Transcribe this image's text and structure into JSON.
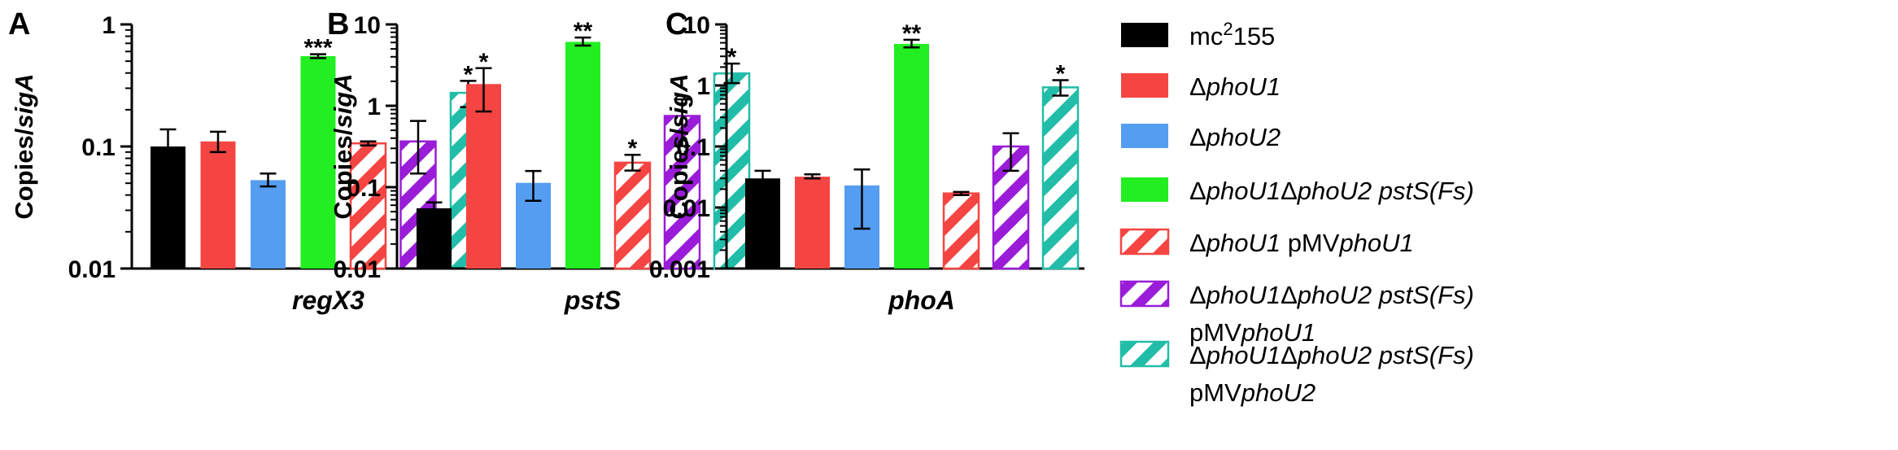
{
  "colors": {
    "mc2155": "#000000",
    "dphoU1": "#f44542",
    "dphoU2": "#559df0",
    "triple": "#22ee22",
    "comp_dphoU1": "#f44542",
    "comp_triple_U1": "#9a1cd8",
    "comp_triple_U2": "#22bda8"
  },
  "legend": [
    {
      "key": "mc2155",
      "style": "solid",
      "lines": [
        [
          {
            "t": "mc",
            "i": false
          },
          {
            "t": "2",
            "i": false,
            "sup": true
          },
          {
            "t": "155",
            "i": false
          }
        ]
      ]
    },
    {
      "key": "dphoU1",
      "style": "solid",
      "lines": [
        [
          {
            "t": "Δ",
            "i": false
          },
          {
            "t": "phoU1",
            "i": true
          }
        ]
      ]
    },
    {
      "key": "dphoU2",
      "style": "solid",
      "lines": [
        [
          {
            "t": "Δ",
            "i": false
          },
          {
            "t": "phoU2",
            "i": true
          }
        ]
      ]
    },
    {
      "key": "triple",
      "style": "solid",
      "lines": [
        [
          {
            "t": "Δ",
            "i": false
          },
          {
            "t": "phoU1",
            "i": true
          },
          {
            "t": "Δ",
            "i": false
          },
          {
            "t": "phoU2 pstS(Fs)",
            "i": true
          }
        ]
      ]
    },
    {
      "key": "comp_dphoU1",
      "style": "hatched",
      "lines": [
        [
          {
            "t": "Δ",
            "i": false
          },
          {
            "t": "phoU1",
            "i": true
          },
          {
            "t": " pMV",
            "i": false
          },
          {
            "t": "phoU1",
            "i": true
          }
        ]
      ]
    },
    {
      "key": "comp_triple_U1",
      "style": "hatched",
      "lines": [
        [
          {
            "t": "Δ",
            "i": false
          },
          {
            "t": "phoU1",
            "i": true
          },
          {
            "t": "Δ",
            "i": false
          },
          {
            "t": "phoU2 pstS(Fs)",
            "i": true
          }
        ],
        [
          {
            "t": "pMV",
            "i": false
          },
          {
            "t": "phoU1",
            "i": true
          }
        ]
      ]
    },
    {
      "key": "comp_triple_U2",
      "style": "hatched",
      "lines": [
        [
          {
            "t": "Δ",
            "i": false
          },
          {
            "t": "phoU1",
            "i": true
          },
          {
            "t": "Δ",
            "i": false
          },
          {
            "t": "phoU2 pstS(Fs)",
            "i": true
          }
        ],
        [
          {
            "t": "pMV",
            "i": false
          },
          {
            "t": "phoU2",
            "i": true
          }
        ]
      ]
    }
  ],
  "chart_data": [
    {
      "type": "bar",
      "panel": "A",
      "title": "",
      "xlabel": "regX3",
      "ylabel": "Copies/sigA",
      "yscale": "log",
      "ylim": [
        0.01,
        1
      ],
      "yticks": [
        "0.01",
        "0.1",
        "1"
      ],
      "series": [
        {
          "key": "mc2155",
          "value": 0.1,
          "err_low": 0.073,
          "err_high": 0.138,
          "sig": ""
        },
        {
          "key": "dphoU1",
          "value": 0.11,
          "err_low": 0.09,
          "err_high": 0.132,
          "sig": ""
        },
        {
          "key": "dphoU2",
          "value": 0.053,
          "err_low": 0.047,
          "err_high": 0.06,
          "sig": ""
        },
        {
          "key": "triple",
          "value": 0.55,
          "err_low": 0.53,
          "err_high": 0.57,
          "sig": "***"
        },
        {
          "key": "comp_dphoU1",
          "value": 0.106,
          "err_low": 0.102,
          "err_high": 0.11,
          "sig": ""
        },
        {
          "key": "comp_triple_U1",
          "value": 0.11,
          "err_low": 0.06,
          "err_high": 0.162,
          "sig": ""
        },
        {
          "key": "comp_triple_U2",
          "value": 0.275,
          "err_low": 0.21,
          "err_high": 0.345,
          "sig": "*"
        }
      ]
    },
    {
      "type": "bar",
      "panel": "B",
      "title": "",
      "xlabel": "pstS",
      "ylabel": "Copies/sigA",
      "yscale": "log",
      "ylim": [
        0.01,
        10
      ],
      "yticks": [
        "0.01",
        "0.1",
        "1",
        "10"
      ],
      "series": [
        {
          "key": "mc2155",
          "value": 0.055,
          "err_low": 0.047,
          "err_high": 0.065,
          "sig": ""
        },
        {
          "key": "dphoU1",
          "value": 1.85,
          "err_low": 0.85,
          "err_high": 2.9,
          "sig": "*"
        },
        {
          "key": "dphoU2",
          "value": 0.113,
          "err_low": 0.068,
          "err_high": 0.158,
          "sig": ""
        },
        {
          "key": "triple",
          "value": 6.1,
          "err_low": 5.5,
          "err_high": 6.9,
          "sig": "**"
        },
        {
          "key": "comp_dphoU1",
          "value": 0.2,
          "err_low": 0.16,
          "err_high": 0.25,
          "sig": "*"
        },
        {
          "key": "comp_triple_U1",
          "value": 0.75,
          "err_low": 0.32,
          "err_high": 1.2,
          "sig": ""
        },
        {
          "key": "comp_triple_U2",
          "value": 2.5,
          "err_low": 1.9,
          "err_high": 3.3,
          "sig": "*"
        }
      ]
    },
    {
      "type": "bar",
      "panel": "C",
      "title": "",
      "xlabel": "phoA",
      "ylabel": "Copies/sigA",
      "yscale": "log",
      "ylim": [
        0.001,
        10
      ],
      "yticks": [
        "0.001",
        "0.01",
        "0.1",
        "1",
        "10"
      ],
      "series": [
        {
          "key": "mc2155",
          "value": 0.03,
          "err_low": 0.025,
          "err_high": 0.04,
          "sig": ""
        },
        {
          "key": "dphoU1",
          "value": 0.032,
          "err_low": 0.03,
          "err_high": 0.035,
          "sig": ""
        },
        {
          "key": "dphoU2",
          "value": 0.023,
          "err_low": 0.0045,
          "err_high": 0.042,
          "sig": ""
        },
        {
          "key": "triple",
          "value": 4.8,
          "err_low": 4.2,
          "err_high": 5.6,
          "sig": "**"
        },
        {
          "key": "comp_dphoU1",
          "value": 0.017,
          "err_low": 0.016,
          "err_high": 0.018,
          "sig": ""
        },
        {
          "key": "comp_triple_U1",
          "value": 0.1,
          "err_low": 0.04,
          "err_high": 0.165,
          "sig": ""
        },
        {
          "key": "comp_triple_U2",
          "value": 0.93,
          "err_low": 0.68,
          "err_high": 1.22,
          "sig": "*"
        }
      ]
    }
  ]
}
